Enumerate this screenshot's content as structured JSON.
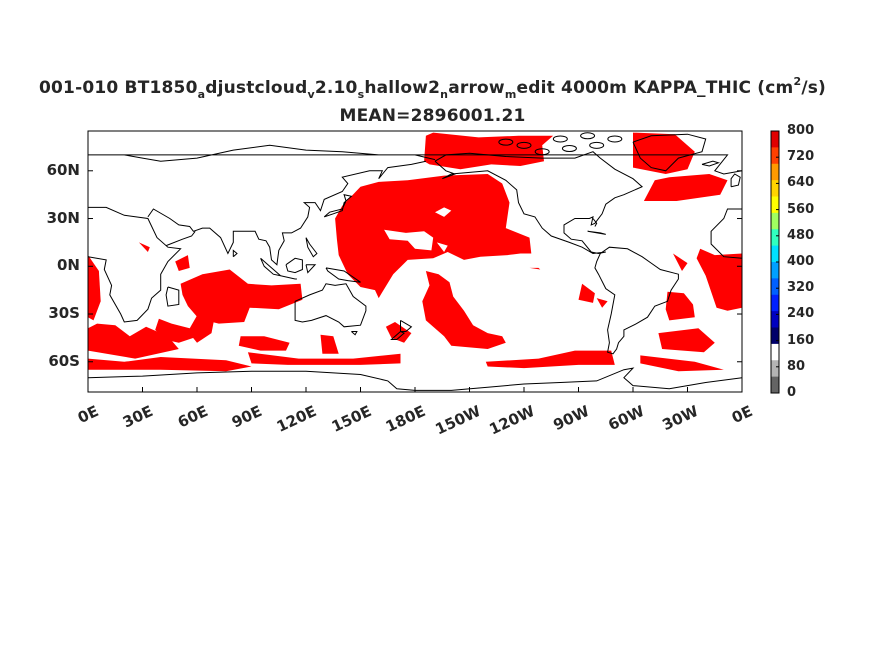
{
  "title": {
    "line1_parts": [
      {
        "t": "001-010 BT1850",
        "s": ""
      },
      {
        "t": "a",
        "s": "sub"
      },
      {
        "t": "djustcloud",
        "s": ""
      },
      {
        "t": "v",
        "s": "sub"
      },
      {
        "t": "2.10",
        "s": ""
      },
      {
        "t": "s",
        "s": "sub"
      },
      {
        "t": "hallow2",
        "s": ""
      },
      {
        "t": "n",
        "s": "sub"
      },
      {
        "t": "arrow",
        "s": ""
      },
      {
        "t": "m",
        "s": "sub"
      },
      {
        "t": "edit 4000m KAPPA_THIC (cm",
        "s": ""
      },
      {
        "t": "2",
        "s": "sup"
      },
      {
        "t": "/s)",
        "s": ""
      }
    ],
    "line2": "MEAN=2896001.21"
  },
  "map": {
    "lat_ticks": [
      "60N",
      "30N",
      "0N",
      "30S",
      "60S"
    ],
    "lon_ticks": [
      "0E",
      "30E",
      "60E",
      "90E",
      "120E",
      "150E",
      "180E",
      "150W",
      "120W",
      "90W",
      "60W",
      "30W",
      "0E"
    ],
    "fill_color": "#ff0000",
    "coastline_color": "#000000"
  },
  "colorbar": {
    "labels": [
      "800",
      "720",
      "640",
      "560",
      "480",
      "400",
      "320",
      "240",
      "160",
      "80",
      "0"
    ],
    "colors": [
      "#e00000",
      "#ff4000",
      "#ff9a00",
      "#ffd400",
      "#ffff00",
      "#a0ff60",
      "#30ffc0",
      "#00e0ff",
      "#00a0ff",
      "#0060ff",
      "#0020ff",
      "#0000c0",
      "#00006a",
      "#ffffff",
      "#b4b4b4",
      "#646464"
    ]
  }
}
